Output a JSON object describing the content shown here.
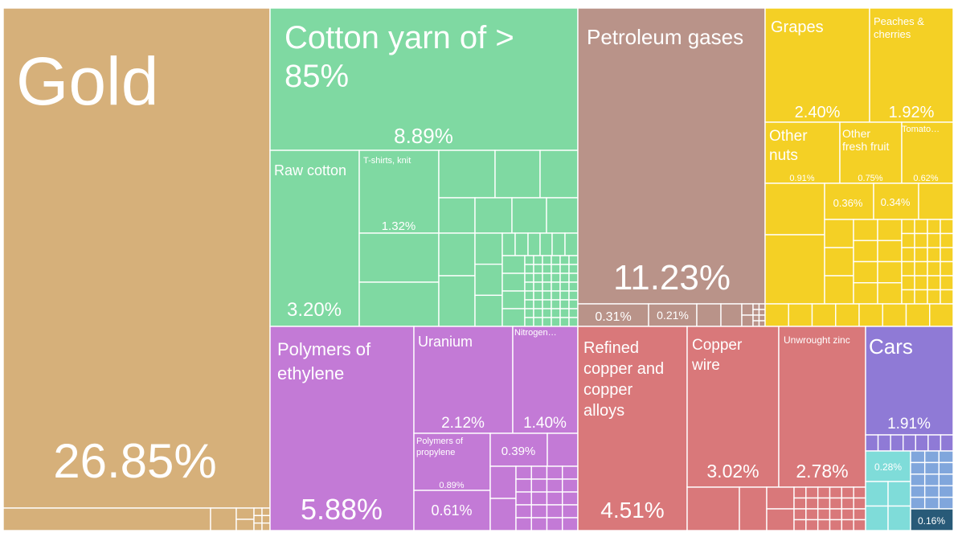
{
  "chart_data": {
    "type": "treemap",
    "colors": {
      "gold": "#d6b07a",
      "textiles": "#7fd9a2",
      "mineral": "#b99389",
      "vegetable": "#f4d025",
      "chemicals": "#c37ad6",
      "metals": "#d9787a",
      "vehicles": "#8f7ad6",
      "instruments": "#7fdcd9",
      "machines": "#80a6dc",
      "misc": "#285a78"
    },
    "tiles": [
      {
        "name": "Gold",
        "share": "26.85%",
        "value": 26.85,
        "group": "gold"
      },
      {
        "name": "Cotton yarn of > 85%",
        "share": "8.89%",
        "value": 8.89,
        "group": "textiles"
      },
      {
        "name": "Raw cotton",
        "share": "3.20%",
        "value": 3.2,
        "group": "textiles"
      },
      {
        "name": "T-shirts, knit",
        "share": "1.32%",
        "value": 1.32,
        "group": "textiles"
      },
      {
        "name": "Petroleum gases",
        "share": "11.23%",
        "value": 11.23,
        "group": "mineral"
      },
      {
        "name": "",
        "share": "0.31%",
        "value": 0.31,
        "group": "mineral"
      },
      {
        "name": "",
        "share": "0.21%",
        "value": 0.21,
        "group": "mineral"
      },
      {
        "name": "Grapes",
        "share": "2.40%",
        "value": 2.4,
        "group": "vegetable"
      },
      {
        "name": "Peaches & cherries",
        "share": "1.92%",
        "value": 1.92,
        "group": "vegetable"
      },
      {
        "name": "Other nuts",
        "share": "0.91%",
        "value": 0.91,
        "group": "vegetable"
      },
      {
        "name": "Other fresh fruit",
        "share": "0.75%",
        "value": 0.75,
        "group": "vegetable"
      },
      {
        "name": "Tomato…",
        "share": "0.62%",
        "value": 0.62,
        "group": "vegetable"
      },
      {
        "name": "",
        "share": "0.36%",
        "value": 0.36,
        "group": "vegetable"
      },
      {
        "name": "",
        "share": "0.34%",
        "value": 0.34,
        "group": "vegetable"
      },
      {
        "name": "Polymers of ethylene",
        "share": "5.88%",
        "value": 5.88,
        "group": "chemicals"
      },
      {
        "name": "Uranium",
        "share": "2.12%",
        "value": 2.12,
        "group": "chemicals"
      },
      {
        "name": "Nitrogen…",
        "share": "1.40%",
        "value": 1.4,
        "group": "chemicals"
      },
      {
        "name": "Polymers of propylene",
        "share": "0.89%",
        "value": 0.89,
        "group": "chemicals"
      },
      {
        "name": "",
        "share": "0.39%",
        "value": 0.39,
        "group": "chemicals"
      },
      {
        "name": "",
        "share": "0.61%",
        "value": 0.61,
        "group": "chemicals"
      },
      {
        "name": "Refined copper and copper alloys",
        "share": "4.51%",
        "value": 4.51,
        "group": "metals"
      },
      {
        "name": "Copper wire",
        "share": "3.02%",
        "value": 3.02,
        "group": "metals"
      },
      {
        "name": "Unwrought zinc",
        "share": "2.78%",
        "value": 2.78,
        "group": "metals"
      },
      {
        "name": "Cars",
        "share": "1.91%",
        "value": 1.91,
        "group": "vehicles"
      },
      {
        "name": "",
        "share": "0.28%",
        "value": 0.28,
        "group": "instruments"
      },
      {
        "name": "",
        "share": "0.16%",
        "value": 0.16,
        "group": "misc"
      }
    ]
  }
}
